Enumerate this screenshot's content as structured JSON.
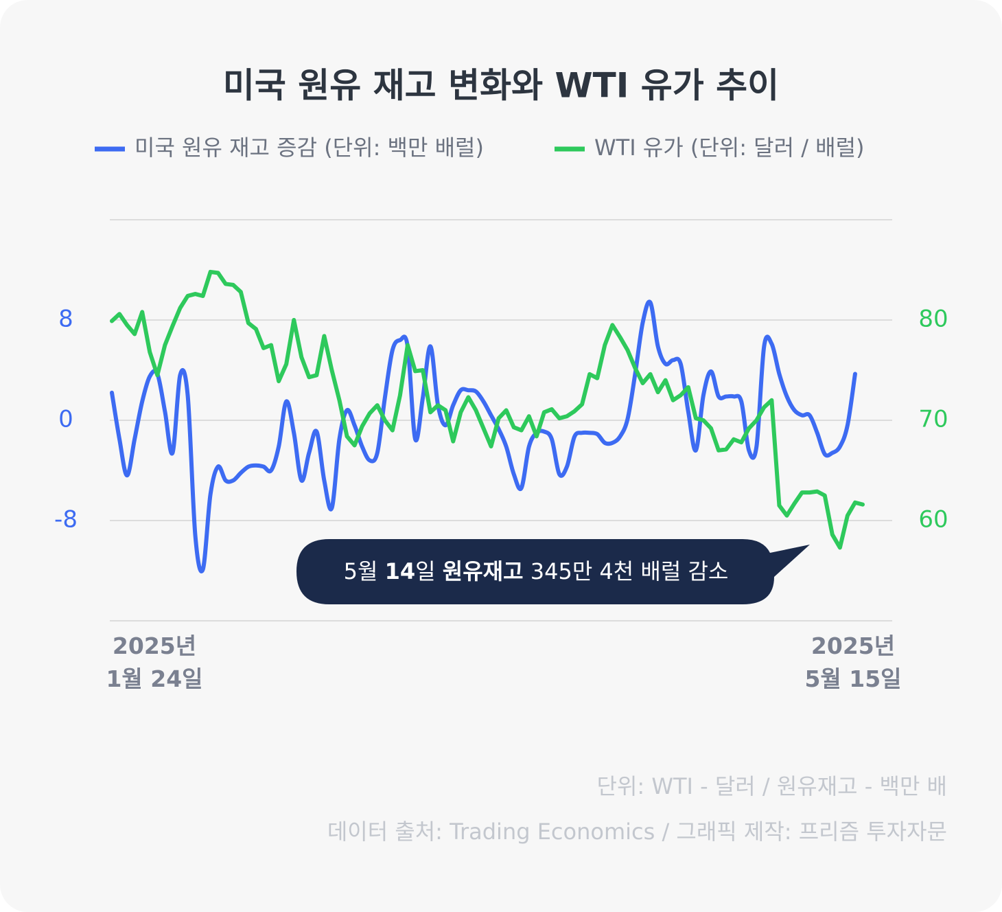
{
  "chart_data": {
    "type": "line",
    "title": "미국 원유 재고 변화와 WTI 유가 추이",
    "categories": [
      "2025년 1월 24일",
      null,
      null,
      null,
      null,
      null,
      null,
      null,
      null,
      null,
      null,
      null,
      null,
      null,
      null,
      null,
      null,
      null,
      null,
      null,
      null,
      null,
      null,
      null,
      null,
      null,
      null,
      null,
      null,
      null,
      null,
      null,
      null,
      null,
      null,
      null,
      null,
      null,
      null,
      null,
      null,
      null,
      null,
      null,
      null,
      null,
      null,
      null,
      null,
      null,
      null,
      null,
      null,
      null,
      null,
      null,
      null,
      null,
      null,
      null,
      null,
      null,
      null,
      null,
      null,
      null,
      null,
      null,
      null,
      null,
      null,
      null,
      null,
      null,
      null,
      null,
      null,
      null,
      null,
      null,
      null,
      null,
      null,
      null,
      null,
      null,
      null,
      null,
      null,
      null,
      null,
      null,
      null,
      null,
      null,
      null,
      null,
      null,
      null,
      "2025년 5월 15일"
    ],
    "series": [
      {
        "name": "미국 원유 재고 증감 (단위: 백만 배럴)",
        "color": "#3d6bf2",
        "axis": "y",
        "smooth": true,
        "values": [
          2.2,
          -1.5,
          -4.4,
          -1.5,
          1.5,
          3.5,
          3.7,
          0.7,
          -2.6,
          3.6,
          2.0,
          -9.2,
          -11.9,
          -5.9,
          -3.7,
          -4.8,
          -4.8,
          -4.2,
          -3.7,
          -3.6,
          -3.7,
          -4.0,
          -2.1,
          1.5,
          -1.0,
          -4.8,
          -2.6,
          -0.9,
          -4.8,
          -7.0,
          -1.5,
          0.8,
          -0.4,
          -2.1,
          -3.2,
          -2.6,
          1.8,
          5.6,
          6.4,
          5.9,
          -1.5,
          1.8,
          5.9,
          1.2,
          -0.4,
          1.2,
          2.4,
          2.4,
          2.3,
          1.5,
          0.4,
          -0.7,
          -2.1,
          -4.3,
          -5.4,
          -2.1,
          -1.0,
          -0.9,
          -1.5,
          -4.3,
          -3.7,
          -1.3,
          -1.0,
          -1.0,
          -1.1,
          -1.8,
          -1.8,
          -1.3,
          0.1,
          3.7,
          7.8,
          9.4,
          5.9,
          4.5,
          4.8,
          4.5,
          0.7,
          -2.4,
          2.0,
          3.9,
          1.9,
          1.9,
          1.9,
          1.5,
          -2.4,
          -2.1,
          5.9,
          6.1,
          3.7,
          1.9,
          0.8,
          0.4,
          0.4,
          -1.0,
          -2.7,
          -2.6,
          -2.1,
          -0.4,
          3.7,
          null
        ]
      },
      {
        "name": "WTI 유가 (단위: 달러 / 배럴)",
        "color": "#2ec95c",
        "axis": "y2",
        "smooth": false,
        "values": [
          79.9,
          80.6,
          79.5,
          78.6,
          80.8,
          76.8,
          74.5,
          77.5,
          79.4,
          81.2,
          82.4,
          82.6,
          82.4,
          84.8,
          84.7,
          83.6,
          83.5,
          82.8,
          79.7,
          79.1,
          77.2,
          77.5,
          73.9,
          75.6,
          80.0,
          76.3,
          74.3,
          74.5,
          78.4,
          75.0,
          72.0,
          68.4,
          67.5,
          69.4,
          70.7,
          71.5,
          70.0,
          69.0,
          72.5,
          77.5,
          74.9,
          75.0,
          70.8,
          71.5,
          71.0,
          67.9,
          70.8,
          72.3,
          71.0,
          69.2,
          67.4,
          70.2,
          71.0,
          69.3,
          69.0,
          70.4,
          68.4,
          70.8,
          71.1,
          70.2,
          70.4,
          70.9,
          71.6,
          74.6,
          74.2,
          77.5,
          79.5,
          78.3,
          77.0,
          75.2,
          73.7,
          74.6,
          72.8,
          74.0,
          72.0,
          72.5,
          73.3,
          70.2,
          70.0,
          69.2,
          67.0,
          67.1,
          68.1,
          67.8,
          69.2,
          70.0,
          71.3,
          72.0,
          61.5,
          60.5,
          61.7,
          62.8,
          62.8,
          62.9,
          62.5,
          58.6,
          57.3,
          60.5,
          61.8,
          61.6
        ]
      }
    ],
    "ylim": [
      -16,
      16
    ],
    "yticks": [
      -8,
      0,
      8
    ],
    "y2lim": [
      50,
      90
    ],
    "y2ticks": [
      60,
      70,
      80
    ],
    "grid": true,
    "annotation": [
      "5월 ",
      "14",
      "일 ",
      "원유재고",
      " 345만 4천 배럴 감소"
    ],
    "footnotes": [
      "단위: WTI - 달러 / 원유재고 - 백만 배",
      "데이터 출처: Trading Economics / 그래픽 제작: 프리즘 투자자문"
    ]
  }
}
